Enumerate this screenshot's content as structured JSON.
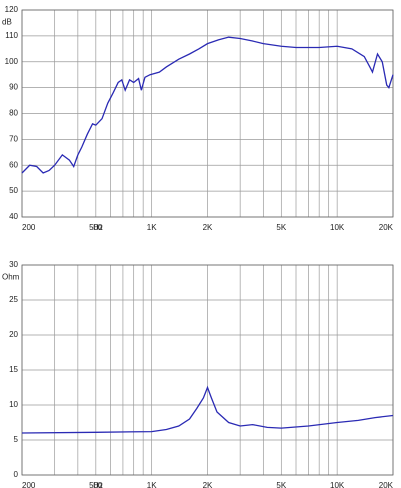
{
  "chart_data": [
    {
      "type": "line",
      "xscale": "log",
      "xlabel": "Hz",
      "ylabel": "dB",
      "xlim": [
        200,
        20000
      ],
      "xticks": [
        {
          "value": 200,
          "label": "200"
        },
        {
          "value": 500,
          "label": "500"
        },
        {
          "value": 1000,
          "label": "1K"
        },
        {
          "value": 2000,
          "label": "2K"
        },
        {
          "value": 5000,
          "label": "5K"
        },
        {
          "value": 10000,
          "label": "10K"
        },
        {
          "value": 20000,
          "label": "20K"
        }
      ],
      "ylim": [
        40,
        120
      ],
      "yticks": [
        40,
        50,
        60,
        70,
        80,
        90,
        100,
        110,
        120
      ],
      "grid": true,
      "x": [
        200,
        220,
        240,
        260,
        280,
        300,
        330,
        360,
        380,
        400,
        420,
        450,
        480,
        500,
        540,
        580,
        620,
        660,
        690,
        720,
        760,
        800,
        850,
        880,
        920,
        980,
        1100,
        1200,
        1400,
        1600,
        1800,
        2000,
        2300,
        2600,
        3000,
        3500,
        4000,
        5000,
        6000,
        8000,
        10000,
        12000,
        14000,
        15000,
        15500,
        16500,
        17500,
        18500,
        19000,
        20000
      ],
      "series": [
        {
          "color": "#2a2ab4",
          "values": [
            57,
            60,
            59.5,
            57,
            58,
            60,
            64,
            62,
            59.5,
            64,
            67,
            72,
            76,
            75.5,
            78,
            84,
            88,
            92,
            93,
            89,
            93,
            92,
            93.5,
            89,
            94,
            95,
            96,
            98,
            101,
            103,
            105,
            107,
            108.5,
            109.5,
            109,
            108,
            107,
            106,
            105.5,
            105.5,
            106,
            105,
            102,
            98,
            96,
            103,
            100,
            91,
            90,
            95
          ]
        }
      ]
    },
    {
      "type": "line",
      "xscale": "log",
      "xlabel": "Hz",
      "ylabel": "Ohm",
      "xlim": [
        200,
        20000
      ],
      "xticks": [
        {
          "value": 200,
          "label": "200"
        },
        {
          "value": 500,
          "label": "500"
        },
        {
          "value": 1000,
          "label": "1K"
        },
        {
          "value": 2000,
          "label": "2K"
        },
        {
          "value": 5000,
          "label": "5K"
        },
        {
          "value": 10000,
          "label": "10K"
        },
        {
          "value": 20000,
          "label": "20K"
        }
      ],
      "ylim": [
        0,
        30
      ],
      "yticks": [
        0,
        5,
        10,
        15,
        20,
        25,
        30
      ],
      "grid": true,
      "x": [
        200,
        500,
        1000,
        1200,
        1400,
        1600,
        1750,
        1900,
        2000,
        2100,
        2250,
        2600,
        3000,
        3500,
        4200,
        5000,
        7000,
        10000,
        13000,
        16000,
        20000
      ],
      "series": [
        {
          "color": "#2a2ab4",
          "values": [
            6,
            6.1,
            6.2,
            6.5,
            7,
            8,
            9.5,
            11,
            12.5,
            11,
            9,
            7.5,
            7,
            7.2,
            6.8,
            6.7,
            7,
            7.5,
            7.8,
            8.2,
            8.5
          ]
        }
      ]
    }
  ]
}
